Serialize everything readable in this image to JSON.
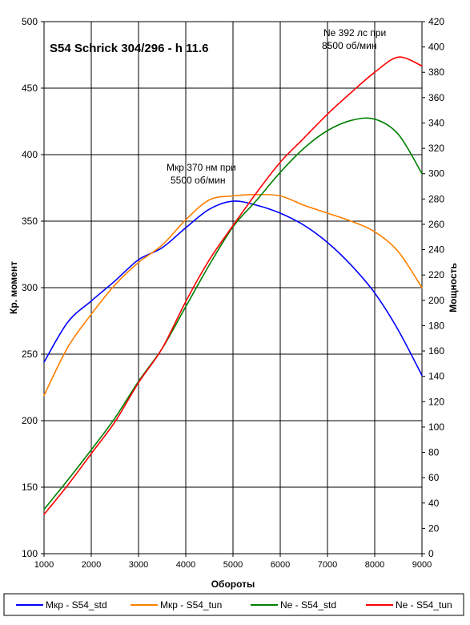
{
  "chart_data": {
    "type": "line",
    "title": "S54 Schrick 304/296 - h 11.6",
    "xlabel": "Обороты",
    "ylabel_left": "Кр. момент",
    "ylabel_right": "Мощность",
    "xlim": [
      1000,
      9000
    ],
    "x_ticks": [
      1000,
      2000,
      3000,
      4000,
      5000,
      6000,
      7000,
      8000,
      9000
    ],
    "ylim_left": [
      100,
      500
    ],
    "y_ticks_left": [
      100,
      150,
      200,
      250,
      300,
      350,
      400,
      450,
      500
    ],
    "ylim_right": [
      0,
      420
    ],
    "y_ticks_right": [
      0,
      20,
      40,
      60,
      80,
      100,
      120,
      140,
      160,
      180,
      200,
      220,
      240,
      260,
      280,
      300,
      320,
      340,
      360,
      380,
      400,
      420
    ],
    "grid": "vertical",
    "legend_position": "bottom",
    "annotations": [
      {
        "id": "torque-peak",
        "lines": [
          "Мкр 370 нм при",
          "5500 об/мин"
        ],
        "x": 5000,
        "y_left": 373
      },
      {
        "id": "power-peak",
        "lines": [
          "Ne 392 лс при",
          "8500 об/мин"
        ],
        "x": 8000,
        "y_right": 412
      }
    ],
    "series": [
      {
        "name": "Мкр - S54_std",
        "axis": "left",
        "color": "#0000ff",
        "x": [
          1000,
          1500,
          2000,
          2500,
          3000,
          3500,
          4000,
          4500,
          5000,
          5500,
          6000,
          6500,
          7000,
          7500,
          8000,
          8500,
          9000
        ],
        "y": [
          244,
          274,
          290,
          305,
          321,
          330,
          345,
          359,
          365,
          362,
          356,
          347,
          334,
          317,
          296,
          268,
          234
        ]
      },
      {
        "name": "Мкр - S54_tun",
        "axis": "left",
        "color": "#ff7f00",
        "x": [
          1000,
          1500,
          2000,
          2500,
          3000,
          3500,
          4000,
          4500,
          5000,
          5500,
          6000,
          6500,
          7000,
          7500,
          8000,
          8500,
          9000
        ],
        "y": [
          219,
          255,
          280,
          302,
          319,
          332,
          351,
          366,
          369,
          370,
          369,
          362,
          356,
          350,
          342,
          327,
          300
        ]
      },
      {
        "name": "Ne - S54_std",
        "axis": "right",
        "color": "#008000",
        "x": [
          1000,
          1500,
          2000,
          2500,
          3000,
          3500,
          4000,
          4500,
          5000,
          5500,
          6000,
          6500,
          7000,
          7500,
          8000,
          8500,
          9000
        ],
        "y": [
          35,
          58,
          82,
          107,
          136,
          162,
          195,
          228,
          258,
          279,
          301,
          320,
          334,
          342,
          343,
          331,
          300
        ]
      },
      {
        "name": "Ne - S54_tun",
        "axis": "right",
        "color": "#ff0000",
        "x": [
          1000,
          1500,
          2000,
          2500,
          3000,
          3500,
          4000,
          4500,
          5000,
          5500,
          6000,
          6500,
          7000,
          7500,
          8000,
          8500,
          9000
        ],
        "y": [
          31,
          54,
          79,
          104,
          135,
          162,
          199,
          232,
          259,
          285,
          309,
          328,
          347,
          364,
          380,
          392,
          385
        ]
      }
    ]
  }
}
